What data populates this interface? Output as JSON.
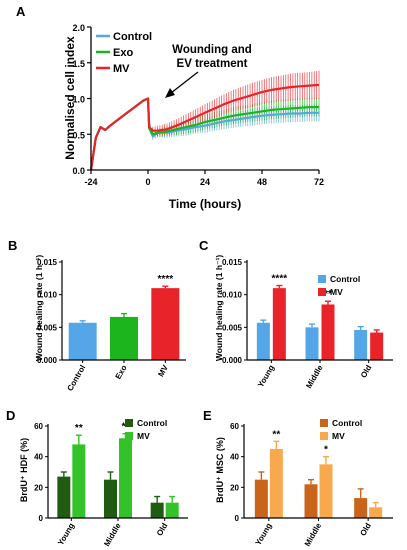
{
  "colors": {
    "control_blue": "#55a6e6",
    "exo_green": "#1db51d",
    "mv_red": "#e8232a",
    "hdf_control": "#1f5c12",
    "hdf_mv": "#33c22a",
    "msc_control": "#c9651b",
    "msc_mv": "#f8a84d"
  },
  "chart_data": [
    {
      "panel": "A",
      "type": "line",
      "xlabel": "Time (hours)",
      "ylabel": "Normalised cell index",
      "xlim": [
        -24,
        72
      ],
      "ylim": [
        0.0,
        2.0
      ],
      "xticks": [
        "-24",
        "0",
        "24",
        "48",
        "72"
      ],
      "yticks": [
        "0.0",
        "0.5",
        "1.0",
        "1.5",
        "2.0"
      ],
      "annotation": [
        "Wounding and",
        "EV treatment"
      ],
      "legend_position": "top-left",
      "series": [
        {
          "name": "Control",
          "color": "#55a6e6",
          "x": [
            -24,
            -22,
            -20,
            -18,
            -16,
            -12,
            -8,
            -4,
            -2,
            0,
            0.5,
            2,
            4,
            8,
            12,
            16,
            20,
            24,
            28,
            32,
            36,
            40,
            44,
            48,
            52,
            56,
            60,
            64,
            68,
            72
          ],
          "y": [
            0.0,
            0.45,
            0.6,
            0.56,
            0.62,
            0.72,
            0.82,
            0.92,
            0.97,
            1.0,
            0.6,
            0.47,
            0.52,
            0.52,
            0.55,
            0.57,
            0.6,
            0.62,
            0.65,
            0.68,
            0.7,
            0.72,
            0.74,
            0.76,
            0.77,
            0.78,
            0.79,
            0.79,
            0.8,
            0.8
          ],
          "err": [
            0,
            0,
            0,
            0,
            0,
            0,
            0,
            0,
            0,
            0,
            0.04,
            0.05,
            0.06,
            0.07,
            0.08,
            0.09,
            0.09,
            0.1,
            0.1,
            0.11,
            0.11,
            0.11,
            0.12,
            0.12,
            0.12,
            0.12,
            0.12,
            0.12,
            0.12,
            0.12
          ]
        },
        {
          "name": "Exo",
          "color": "#1db51d",
          "x": [
            -24,
            -22,
            -20,
            -18,
            -16,
            -12,
            -8,
            -4,
            -2,
            0,
            0.5,
            2,
            4,
            8,
            12,
            16,
            20,
            24,
            28,
            32,
            36,
            40,
            44,
            48,
            52,
            56,
            60,
            64,
            68,
            72
          ],
          "y": [
            0.0,
            0.45,
            0.6,
            0.56,
            0.62,
            0.72,
            0.82,
            0.92,
            0.97,
            1.0,
            0.58,
            0.5,
            0.52,
            0.54,
            0.57,
            0.6,
            0.63,
            0.67,
            0.7,
            0.73,
            0.76,
            0.78,
            0.8,
            0.82,
            0.84,
            0.85,
            0.86,
            0.87,
            0.88,
            0.88
          ],
          "err": [
            0,
            0,
            0,
            0,
            0,
            0,
            0,
            0,
            0,
            0,
            0.04,
            0.05,
            0.06,
            0.07,
            0.08,
            0.09,
            0.1,
            0.1,
            0.11,
            0.11,
            0.12,
            0.12,
            0.12,
            0.13,
            0.13,
            0.13,
            0.13,
            0.13,
            0.13,
            0.13
          ]
        },
        {
          "name": "MV",
          "color": "#e8232a",
          "x": [
            -24,
            -22,
            -20,
            -18,
            -16,
            -12,
            -8,
            -4,
            -2,
            0,
            0.5,
            2,
            4,
            8,
            12,
            16,
            20,
            24,
            28,
            32,
            36,
            40,
            44,
            48,
            52,
            56,
            60,
            64,
            68,
            72
          ],
          "y": [
            0.0,
            0.45,
            0.6,
            0.56,
            0.62,
            0.72,
            0.82,
            0.92,
            0.97,
            1.0,
            0.6,
            0.55,
            0.55,
            0.57,
            0.62,
            0.68,
            0.74,
            0.8,
            0.86,
            0.92,
            0.97,
            1.01,
            1.05,
            1.09,
            1.12,
            1.14,
            1.16,
            1.17,
            1.18,
            1.19
          ],
          "err": [
            0,
            0,
            0,
            0,
            0,
            0,
            0,
            0,
            0,
            0,
            0.04,
            0.05,
            0.07,
            0.08,
            0.09,
            0.1,
            0.11,
            0.12,
            0.13,
            0.14,
            0.15,
            0.16,
            0.17,
            0.17,
            0.18,
            0.18,
            0.19,
            0.19,
            0.19,
            0.2
          ]
        }
      ]
    },
    {
      "panel": "B",
      "type": "bar",
      "ylabel": "Wound healing rate (1 h⁻¹)",
      "ylim": [
        0.0,
        0.015
      ],
      "yticks": [
        "0.000",
        "0.005",
        "0.010",
        "0.015"
      ],
      "categories": [
        "Control",
        "Exo",
        "MV"
      ],
      "values": [
        0.0057,
        0.0066,
        0.011
      ],
      "errors": [
        0.0003,
        0.0005,
        0.0003
      ],
      "bar_colors": [
        "#55a6e6",
        "#1db51d",
        "#e8232a"
      ],
      "significance": [
        "",
        "",
        "****"
      ]
    },
    {
      "panel": "C",
      "type": "bar",
      "ylabel": "Wound healing rate (1 h⁻¹)",
      "ylim": [
        0.0,
        0.015
      ],
      "yticks": [
        "0.000",
        "0.005",
        "0.010",
        "0.015"
      ],
      "categories": [
        "Young",
        "Middle",
        "Old"
      ],
      "legend_position": "top-right",
      "series": [
        {
          "name": "Control",
          "color": "#55a6e6",
          "values": [
            0.0057,
            0.005,
            0.0046
          ],
          "errors": [
            0.0004,
            0.0005,
            0.0005
          ]
        },
        {
          "name": "MV",
          "color": "#e8232a",
          "values": [
            0.011,
            0.0085,
            0.0042
          ],
          "errors": [
            0.0004,
            0.0005,
            0.0004
          ]
        }
      ],
      "significance": [
        "****",
        "**",
        ""
      ]
    },
    {
      "panel": "D",
      "type": "bar",
      "ylabel": "BrdU⁺ HDF (%)",
      "ylim": [
        0,
        60
      ],
      "yticks": [
        "0",
        "20",
        "40",
        "60"
      ],
      "categories": [
        "Young",
        "Middle",
        "Old"
      ],
      "legend_position": "top-right",
      "series": [
        {
          "name": "Control",
          "color": "#1f5c12",
          "values": [
            27,
            25,
            10
          ],
          "errors": [
            3,
            5,
            4
          ]
        },
        {
          "name": "MV",
          "color": "#33c22a",
          "values": [
            48,
            52,
            10
          ],
          "errors": [
            6,
            3,
            4
          ]
        }
      ],
      "significance": [
        "**",
        "**",
        ""
      ]
    },
    {
      "panel": "E",
      "type": "bar",
      "ylabel": "BrdU⁺ MSC (%)",
      "ylim": [
        0,
        60
      ],
      "yticks": [
        "0",
        "20",
        "40",
        "60"
      ],
      "categories": [
        "Young",
        "Middle",
        "Old"
      ],
      "legend_position": "top-right",
      "series": [
        {
          "name": "Control",
          "color": "#c9651b",
          "values": [
            25,
            22,
            13
          ],
          "errors": [
            5,
            3,
            6
          ]
        },
        {
          "name": "MV",
          "color": "#f8a84d",
          "values": [
            45,
            35,
            7
          ],
          "errors": [
            5,
            5,
            3
          ]
        }
      ],
      "significance": [
        "**",
        "*",
        ""
      ]
    }
  ]
}
